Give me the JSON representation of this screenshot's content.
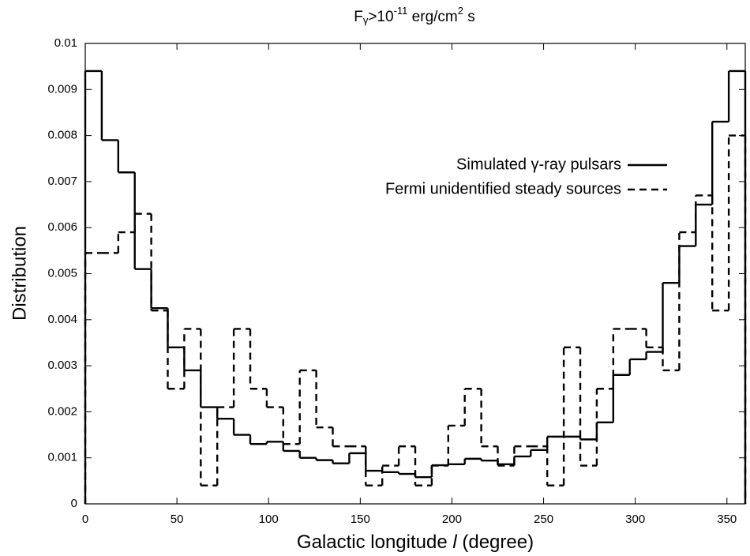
{
  "chart_data": {
    "type": "step-histogram",
    "title_parts": [
      "F",
      "γ",
      ">10",
      "-11",
      " erg/cm",
      "2",
      " s"
    ],
    "xlabel_parts": [
      "Galactic longitude ",
      "l",
      " (degree)"
    ],
    "ylabel": "Distribution",
    "bins": [
      0,
      9,
      18,
      27,
      36,
      45,
      54,
      63,
      72,
      81,
      90,
      99,
      108,
      117,
      126,
      135,
      144,
      153,
      162,
      171,
      180,
      189,
      198,
      207,
      216,
      225,
      234,
      243,
      252,
      261,
      270,
      279,
      288,
      297,
      306,
      315,
      324,
      333,
      342,
      351,
      360
    ],
    "series": [
      {
        "name": "Simulated γ-ray pulsars",
        "color": "#000000",
        "dash": "solid",
        "values": [
          0.0094,
          0.0079,
          0.0072,
          0.0051,
          0.00425,
          0.0034,
          0.0029,
          0.0021,
          0.00185,
          0.0015,
          0.0013,
          0.00135,
          0.00115,
          0.001,
          0.00095,
          0.00088,
          0.0011,
          0.00072,
          0.00069,
          0.00065,
          0.00058,
          0.00084,
          0.00086,
          0.00098,
          0.00094,
          0.00086,
          0.00103,
          0.00117,
          0.00146,
          0.00146,
          0.0014,
          0.00177,
          0.0028,
          0.00314,
          0.0033,
          0.0048,
          0.0056,
          0.0065,
          0.0083,
          0.0094
        ]
      },
      {
        "name": "Fermi unidentified steady sources",
        "color": "#000000",
        "dash": "dashed",
        "values": [
          0.00545,
          0.00545,
          0.0059,
          0.0063,
          0.0042,
          0.0025,
          0.0038,
          0.0004,
          0.0021,
          0.0038,
          0.0025,
          0.0021,
          0.0013,
          0.0029,
          0.00166,
          0.00125,
          0.00125,
          0.0004,
          0.00083,
          0.00125,
          0.0004,
          0.00083,
          0.0017,
          0.0025,
          0.00125,
          0.00083,
          0.00125,
          0.00125,
          0.0004,
          0.0034,
          0.00083,
          0.0025,
          0.0038,
          0.0038,
          0.0034,
          0.0029,
          0.0059,
          0.0067,
          0.0042,
          0.008
        ]
      }
    ],
    "xlim": [
      0,
      360
    ],
    "xticks": [
      0,
      50,
      100,
      150,
      200,
      250,
      300,
      350
    ],
    "ylim": [
      0,
      0.01
    ],
    "yticks": [
      0,
      0.001,
      0.002,
      0.003,
      0.004,
      0.005,
      0.006,
      0.007,
      0.008,
      0.009,
      0.01
    ],
    "legend": "upper right"
  }
}
